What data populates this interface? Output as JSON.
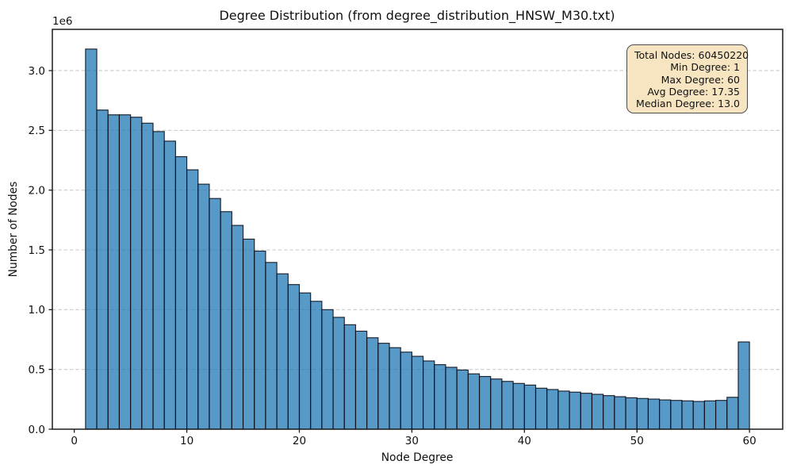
{
  "figure": {
    "title": "Degree Distribution (from degree_distribution_HNSW_M30.txt)",
    "xlabel": "Node Degree",
    "ylabel": "Number of Nodes",
    "y_offset_label": "1e6"
  },
  "stats_box": {
    "lines": [
      "Total Nodes: 60450220",
      "Min Degree: 1",
      "Max Degree: 60",
      "Avg Degree: 17.35",
      "Median Degree: 13.0"
    ]
  },
  "chart_data": {
    "type": "bar",
    "title": "Degree Distribution (from degree_distribution_HNSW_M30.txt)",
    "xlabel": "Node Degree",
    "ylabel": "Number of Nodes",
    "y_unit_multiplier_label": "1e6",
    "bin_width": 1,
    "degrees": [
      1,
      2,
      3,
      4,
      5,
      6,
      7,
      8,
      9,
      10,
      11,
      12,
      13,
      14,
      15,
      16,
      17,
      18,
      19,
      20,
      21,
      22,
      23,
      24,
      25,
      26,
      27,
      28,
      29,
      30,
      31,
      32,
      33,
      34,
      35,
      36,
      37,
      38,
      39,
      40,
      41,
      42,
      43,
      44,
      45,
      46,
      47,
      48,
      49,
      50,
      51,
      52,
      53,
      54,
      55,
      56,
      57,
      58,
      59
    ],
    "counts": [
      3180000,
      2670000,
      2630000,
      2630000,
      2610000,
      2560000,
      2490000,
      2410000,
      2280000,
      2170000,
      2050000,
      1930000,
      1820000,
      1705000,
      1590000,
      1490000,
      1395000,
      1300000,
      1210000,
      1140000,
      1070000,
      1000000,
      936000,
      874000,
      820000,
      765000,
      719000,
      682000,
      645000,
      610000,
      571000,
      540000,
      518000,
      495000,
      463000,
      441000,
      420000,
      400000,
      383000,
      369000,
      343000,
      332000,
      319000,
      310000,
      301000,
      292000,
      281000,
      272000,
      263000,
      257000,
      252000,
      245000,
      241000,
      237000,
      232000,
      237000,
      241000,
      267000,
      730000
    ],
    "xticks": [
      {
        "value": 0,
        "label": "0"
      },
      {
        "value": 10,
        "label": "10"
      },
      {
        "value": 20,
        "label": "20"
      },
      {
        "value": 30,
        "label": "30"
      },
      {
        "value": 40,
        "label": "40"
      },
      {
        "value": 50,
        "label": "50"
      },
      {
        "value": 60,
        "label": "60"
      }
    ],
    "yticks": [
      {
        "value": 0,
        "label": "0.0"
      },
      {
        "value": 500000,
        "label": "0.5"
      },
      {
        "value": 1000000,
        "label": "1.0"
      },
      {
        "value": 1500000,
        "label": "1.5"
      },
      {
        "value": 2000000,
        "label": "2.0"
      },
      {
        "value": 2500000,
        "label": "2.5"
      },
      {
        "value": 3000000,
        "label": "3.0"
      }
    ],
    "xlim": [
      -1.95,
      62.95
    ],
    "ylim": [
      0,
      3345000
    ],
    "grid": "horizontal-dashed",
    "legend": "none",
    "annotation_box_position": "top-right",
    "colors": {
      "bar_fill": "#1f77b4",
      "bar_fill_opacity": 0.75,
      "bar_edge": "#0a0a14",
      "bar_edge_opacity": 0.88,
      "grid": "#c9c9c9",
      "spine": "#1c1c1c",
      "stats_box_bg": "#f7e5c2",
      "stats_box_border": "#4d4d4d",
      "text": "#111111"
    }
  }
}
